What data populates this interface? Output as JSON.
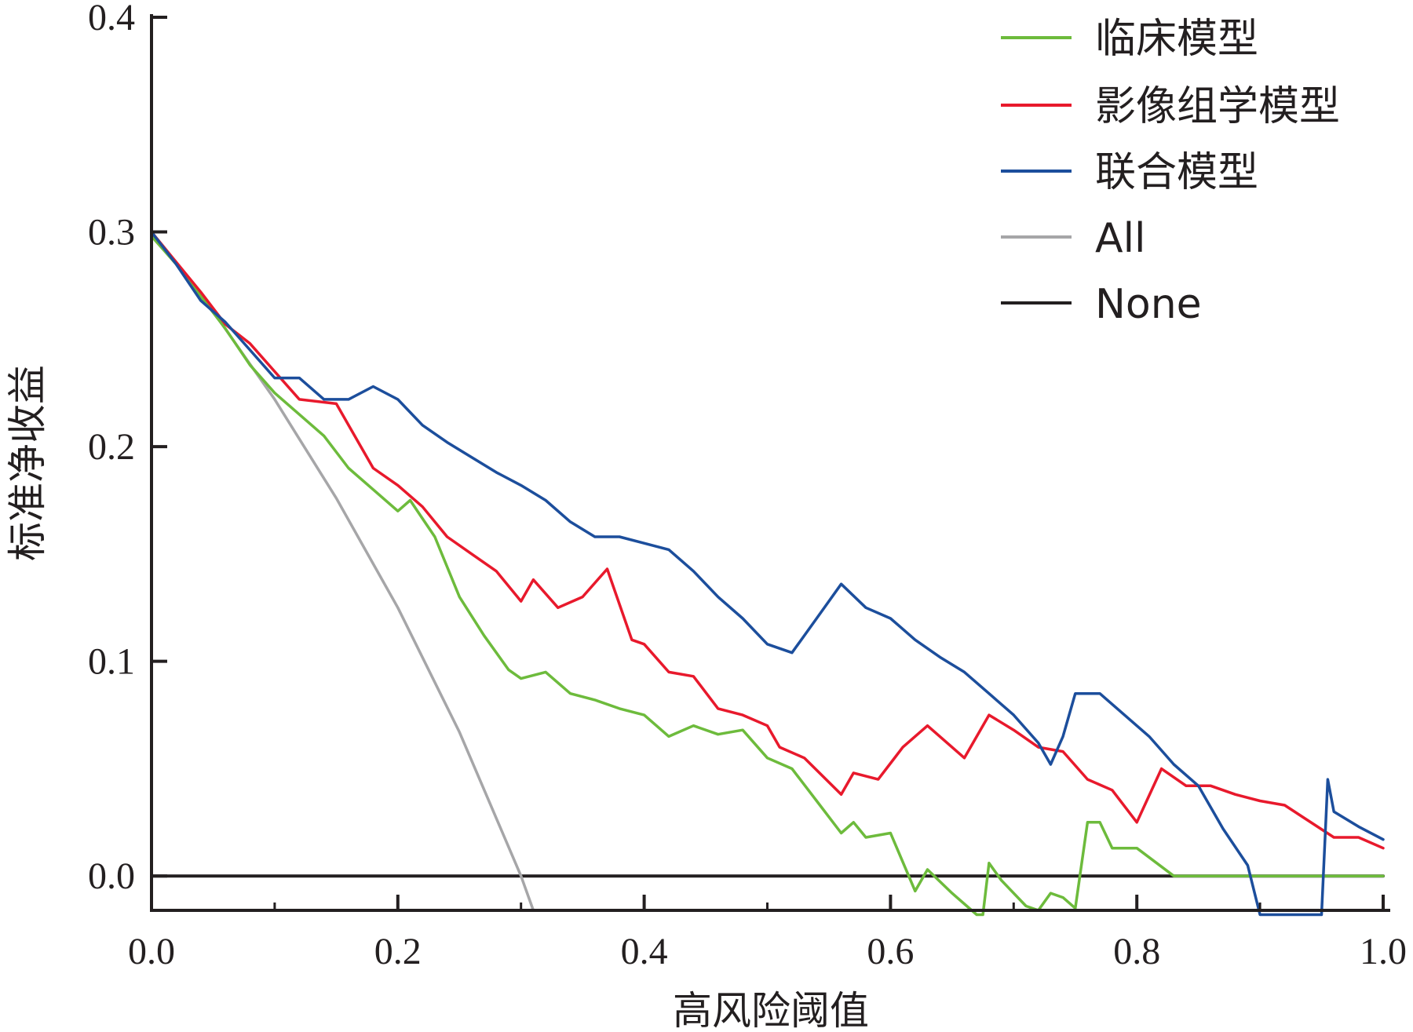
{
  "chart_data": {
    "type": "line",
    "title": "",
    "xlabel": "高风险阈值",
    "ylabel": "标准净收益",
    "xlim": [
      0,
      1.0
    ],
    "ylim": [
      -0.016,
      0.4
    ],
    "xticks": [
      "0.0",
      "0.2",
      "0.4",
      "0.6",
      "0.8",
      "1.0"
    ],
    "yticks": [
      "0.0",
      "0.1",
      "0.2",
      "0.3",
      "0.4"
    ],
    "grid": false,
    "legend_position": "top-right",
    "series": [
      {
        "name": "临床模型",
        "color": "#6dbb3c",
        "x": [
          0,
          0.02,
          0.04,
          0.06,
          0.08,
          0.1,
          0.12,
          0.14,
          0.16,
          0.18,
          0.2,
          0.21,
          0.23,
          0.25,
          0.27,
          0.29,
          0.3,
          0.32,
          0.34,
          0.36,
          0.38,
          0.4,
          0.42,
          0.44,
          0.46,
          0.48,
          0.5,
          0.52,
          0.54,
          0.56,
          0.57,
          0.58,
          0.6,
          0.62,
          0.63,
          0.65,
          0.67,
          0.675,
          0.68,
          0.69,
          0.71,
          0.72,
          0.73,
          0.74,
          0.75,
          0.76,
          0.77,
          0.78,
          0.8,
          0.83,
          0.9,
          1.0
        ],
        "y": [
          0.298,
          0.285,
          0.27,
          0.255,
          0.238,
          0.225,
          0.215,
          0.205,
          0.19,
          0.18,
          0.17,
          0.175,
          0.158,
          0.13,
          0.112,
          0.096,
          0.092,
          0.095,
          0.085,
          0.082,
          0.078,
          0.075,
          0.065,
          0.07,
          0.066,
          0.068,
          0.055,
          0.05,
          0.035,
          0.02,
          0.025,
          0.018,
          0.02,
          -0.007,
          0.003,
          -0.008,
          -0.018,
          -0.018,
          0.006,
          -0.002,
          -0.014,
          -0.016,
          -0.008,
          -0.01,
          -0.015,
          0.025,
          0.025,
          0.013,
          0.013,
          0.0,
          0.0,
          0.0
        ]
      },
      {
        "name": "影像组学模型",
        "color": "#e8192c",
        "x": [
          0,
          0.04,
          0.06,
          0.08,
          0.1,
          0.12,
          0.15,
          0.17,
          0.18,
          0.2,
          0.22,
          0.24,
          0.26,
          0.28,
          0.3,
          0.31,
          0.33,
          0.35,
          0.37,
          0.39,
          0.4,
          0.42,
          0.44,
          0.46,
          0.48,
          0.5,
          0.51,
          0.53,
          0.56,
          0.57,
          0.59,
          0.61,
          0.63,
          0.66,
          0.68,
          0.7,
          0.72,
          0.74,
          0.76,
          0.78,
          0.8,
          0.82,
          0.84,
          0.86,
          0.88,
          0.9,
          0.92,
          0.96,
          0.98,
          1.0
        ],
        "y": [
          0.3,
          0.272,
          0.257,
          0.248,
          0.235,
          0.222,
          0.22,
          0.2,
          0.19,
          0.182,
          0.172,
          0.158,
          0.15,
          0.142,
          0.128,
          0.138,
          0.125,
          0.13,
          0.143,
          0.11,
          0.108,
          0.095,
          0.093,
          0.078,
          0.075,
          0.07,
          0.06,
          0.055,
          0.038,
          0.048,
          0.045,
          0.06,
          0.07,
          0.055,
          0.075,
          0.068,
          0.06,
          0.058,
          0.045,
          0.04,
          0.025,
          0.05,
          0.042,
          0.042,
          0.038,
          0.035,
          0.033,
          0.018,
          0.018,
          0.013
        ]
      },
      {
        "name": "联合模型",
        "color": "#1c4e9c",
        "x": [
          0,
          0.02,
          0.04,
          0.06,
          0.08,
          0.1,
          0.12,
          0.14,
          0.16,
          0.18,
          0.2,
          0.22,
          0.24,
          0.26,
          0.28,
          0.3,
          0.32,
          0.34,
          0.36,
          0.38,
          0.4,
          0.42,
          0.44,
          0.46,
          0.48,
          0.5,
          0.52,
          0.54,
          0.56,
          0.58,
          0.6,
          0.62,
          0.64,
          0.66,
          0.68,
          0.7,
          0.72,
          0.73,
          0.74,
          0.75,
          0.77,
          0.79,
          0.81,
          0.83,
          0.85,
          0.87,
          0.89,
          0.9,
          0.95,
          0.955,
          0.96,
          0.98,
          1.0
        ],
        "y": [
          0.3,
          0.285,
          0.268,
          0.258,
          0.245,
          0.232,
          0.232,
          0.222,
          0.222,
          0.228,
          0.222,
          0.21,
          0.202,
          0.195,
          0.188,
          0.182,
          0.175,
          0.165,
          0.158,
          0.158,
          0.155,
          0.152,
          0.142,
          0.13,
          0.12,
          0.108,
          0.104,
          0.12,
          0.136,
          0.125,
          0.12,
          0.11,
          0.102,
          0.095,
          0.085,
          0.075,
          0.062,
          0.052,
          0.065,
          0.085,
          0.085,
          0.075,
          0.065,
          0.052,
          0.042,
          0.022,
          0.005,
          -0.018,
          -0.018,
          0.045,
          0.03,
          0.023,
          0.017
        ]
      },
      {
        "name": "All",
        "color": "#a6a6a8",
        "x": [
          0,
          0.05,
          0.1,
          0.15,
          0.2,
          0.25,
          0.3,
          0.31
        ],
        "y": [
          0.3,
          0.263,
          0.222,
          0.176,
          0.125,
          0.067,
          0.0,
          -0.016
        ]
      },
      {
        "name": "None",
        "color": "#231f20",
        "x": [
          0,
          1.0
        ],
        "y": [
          0,
          0
        ]
      }
    ]
  }
}
